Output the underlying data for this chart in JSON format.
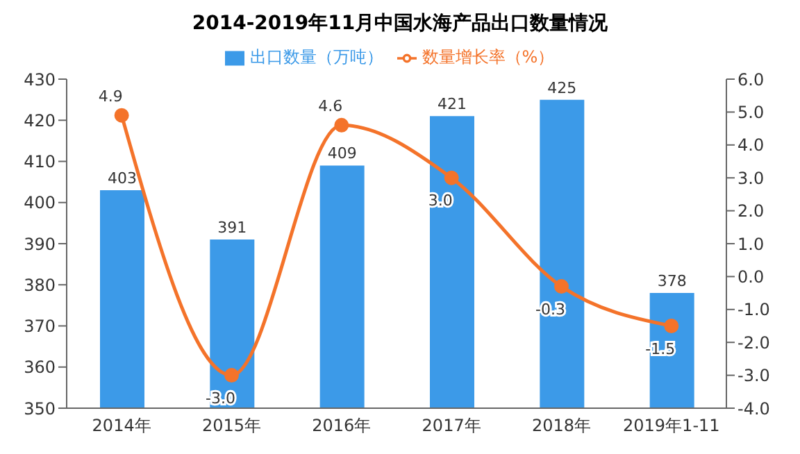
{
  "chart_data": {
    "type": "bar",
    "title": "2014-2019年11月中国水海产品出口数量情况",
    "categories": [
      "2014年",
      "2015年",
      "2016年",
      "2017年",
      "2018年",
      "2019年1-11"
    ],
    "series": [
      {
        "name": "出口数量（万吨）",
        "color": "#3c9ae8",
        "values": [
          403,
          391,
          409,
          421,
          425,
          378
        ]
      },
      {
        "name": "数量增长率（%）",
        "type": "line",
        "axis": "y2",
        "color": "#f4732a",
        "values": [
          4.9,
          -3.0,
          4.6,
          3.0,
          -0.3,
          -1.5
        ],
        "value_labels": [
          "4.9",
          "-3.0",
          "4.6",
          "3.0",
          "-0.3",
          "-1.5"
        ]
      }
    ],
    "ylim": [
      350,
      430
    ],
    "yticks": [
      350,
      360,
      370,
      380,
      390,
      400,
      410,
      420,
      430
    ],
    "y2lim": [
      -4,
      6
    ],
    "y2ticks": [
      {
        "value": -4,
        "label": "-4.0"
      },
      {
        "value": -3,
        "label": "-3.0"
      },
      {
        "value": -2,
        "label": "-2.0"
      },
      {
        "value": -1,
        "label": "-1.0"
      },
      {
        "value": 0,
        "label": "0.0"
      },
      {
        "value": 1,
        "label": "1.0"
      },
      {
        "value": 2,
        "label": "2.0"
      },
      {
        "value": 3,
        "label": "3.0"
      },
      {
        "value": 4,
        "label": "4.0"
      },
      {
        "value": 5,
        "label": "5.0"
      },
      {
        "value": 6,
        "label": "6.0"
      }
    ],
    "data_labels": true,
    "legend": "top",
    "grid": false,
    "marker": "circle",
    "line_style": "solid"
  }
}
